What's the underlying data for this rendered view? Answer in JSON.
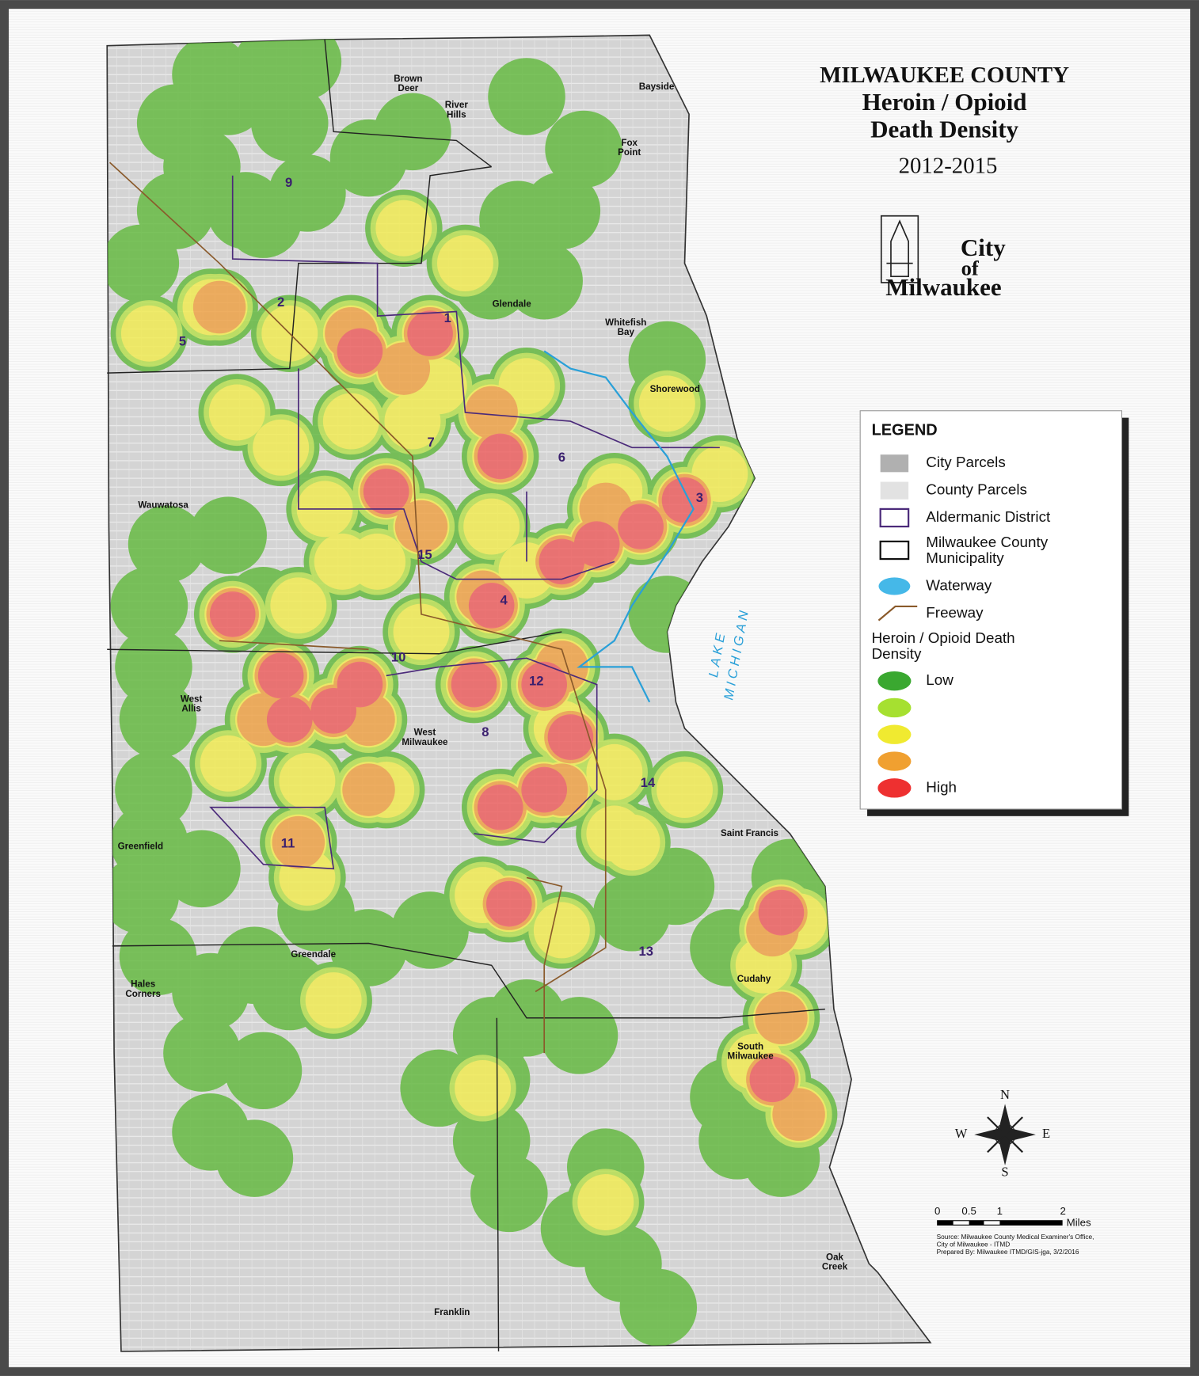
{
  "header": {
    "title_lines": [
      "MILWAUKEE COUNTY",
      "Heroin / Opioid",
      "Death Density"
    ],
    "years": "2012-2015",
    "logo_lines": [
      "City",
      "of",
      "Milwaukee"
    ]
  },
  "places": [
    {
      "lines": [
        "Brown",
        "Deer"
      ]
    },
    {
      "lines": [
        "River",
        "Hills"
      ]
    },
    {
      "lines": [
        "Bayside"
      ]
    },
    {
      "lines": [
        "Fox",
        "Point"
      ]
    },
    {
      "lines": [
        "Glendale"
      ]
    },
    {
      "lines": [
        "Whitefish",
        "Bay"
      ]
    },
    {
      "lines": [
        "Shorewood"
      ]
    },
    {
      "lines": [
        "Wauwatosa"
      ]
    },
    {
      "lines": [
        "West",
        "Allis"
      ]
    },
    {
      "lines": [
        "West",
        "Milwaukee"
      ]
    },
    {
      "lines": [
        "Greenfield"
      ]
    },
    {
      "lines": [
        "Greendale"
      ]
    },
    {
      "lines": [
        "Hales",
        "Corners"
      ]
    },
    {
      "lines": [
        "Saint Francis"
      ]
    },
    {
      "lines": [
        "Cudahy"
      ]
    },
    {
      "lines": [
        "South",
        "Milwaukee"
      ]
    },
    {
      "lines": [
        "Oak",
        "Creek"
      ]
    },
    {
      "lines": [
        "Franklin"
      ]
    }
  ],
  "districts": [
    "1",
    "2",
    "3",
    "4",
    "5",
    "6",
    "7",
    "8",
    "9",
    "10",
    "11",
    "12",
    "13",
    "14",
    "15"
  ],
  "lake_lines": [
    "LAKE",
    "MICHIGAN"
  ],
  "legend": {
    "title": "LEGEND",
    "items": [
      {
        "lines": [
          "City Parcels"
        ]
      },
      {
        "lines": [
          "County Parcels"
        ]
      },
      {
        "lines": [
          "Aldermanic District"
        ]
      },
      {
        "lines": [
          "Milwaukee County",
          "Municipality"
        ]
      },
      {
        "lines": [
          "Waterway"
        ]
      },
      {
        "lines": [
          "Freeway"
        ]
      }
    ],
    "density_title_lines": [
      "Heroin / Opioid Death",
      "Density"
    ],
    "low": "Low",
    "high": "High"
  },
  "compass": {
    "n": "N",
    "e": "E",
    "s": "S",
    "w": "W"
  },
  "scale": {
    "ticks": [
      "0",
      "0.5",
      "1",
      "2"
    ],
    "unit": "Miles"
  },
  "source_lines": [
    "Source: Milwaukee County Medical Examiner's Office,",
    "City of Milwaukee - ITMD",
    "Prepared By: Milwaukee ITMD/GIS-jga, 3/2/2016"
  ]
}
